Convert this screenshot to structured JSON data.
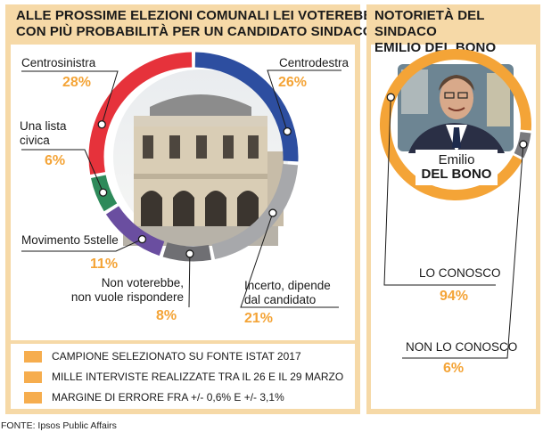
{
  "left_title": [
    "ALLE PROSSIME ELEZIONI COMUNALI LEI VOTEREBBE",
    "CON PIÙ PROBABILITÀ PER UN CANDIDATO SINDACO..."
  ],
  "right_title": [
    "NOTORIETÀ DEL SINDACO",
    "EMILIO DEL BONO"
  ],
  "notes": [
    "CAMPIONE SELEZIONATO SU FONTE ISTAT 2017",
    "MILLE INTERVISTE REALIZZATE TRA IL 26 E IL 29 MARZO",
    "MARGINE DI ERRORE FRA +/- 0,6% E +/- 3,1%"
  ],
  "source": "FONTE: Ipsos Public Affairs",
  "person_label": [
    "Emilio",
    "DEL BONO"
  ],
  "colors": {
    "accent": "#f4a437",
    "panel_bg": "#f6d9a7"
  },
  "chart_data": [
    {
      "type": "pie",
      "categories": [
        "Centrodestra",
        "Incerto, dipende dal candidato",
        "Non voterebbe, non vuole rispondere",
        "Movimento 5stelle",
        "Una lista civica",
        "Centrosinistra"
      ],
      "label_lines": [
        [
          "Centrodestra"
        ],
        [
          "Incerto, dipende",
          "dal candidato"
        ],
        [
          "Non  voterebbe,",
          "non vuole rispondere"
        ],
        [
          "Movimento 5stelle"
        ],
        [
          "Una lista",
          "civica"
        ],
        [
          "Centrosinistra"
        ]
      ],
      "values": [
        26,
        21,
        8,
        11,
        6,
        28
      ],
      "value_labels": [
        "26%",
        "21%",
        "8%",
        "11%",
        "6%",
        "28%"
      ],
      "colors": [
        "#2d4ea0",
        "#a7a8ab",
        "#6f6f73",
        "#6a4ea0",
        "#2e8a5a",
        "#e6323b"
      ]
    },
    {
      "type": "pie",
      "categories": [
        "LO CONOSCO",
        "NON LO CONOSCO"
      ],
      "values": [
        94,
        6
      ],
      "value_labels": [
        "94%",
        "6%"
      ],
      "colors": [
        "#f4a437",
        "#7a7a7e"
      ]
    }
  ]
}
